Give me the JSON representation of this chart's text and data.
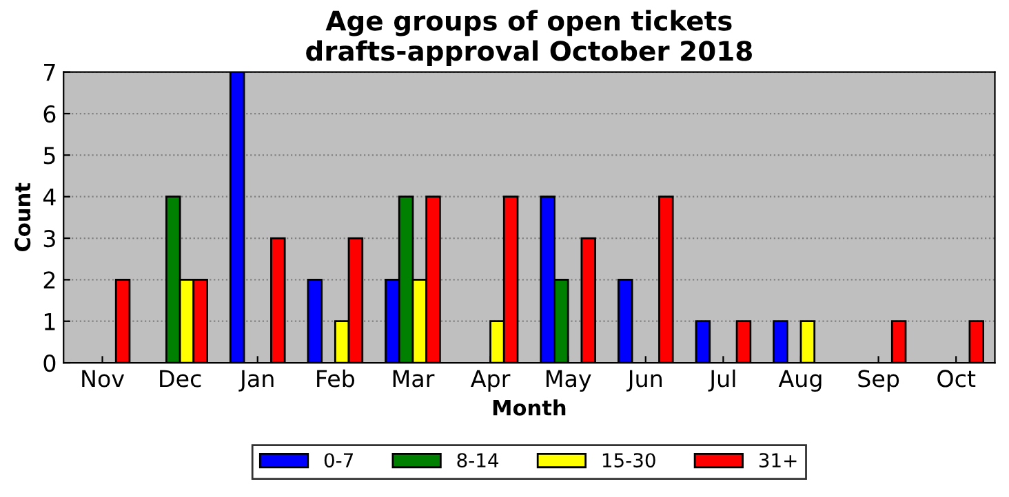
{
  "chart_data": {
    "type": "bar",
    "title": "Age groups of open tickets\ndrafts-approval October 2018",
    "xlabel": "Month",
    "ylabel": "Count",
    "categories": [
      "Nov",
      "Dec",
      "Jan",
      "Feb",
      "Mar",
      "Apr",
      "May",
      "Jun",
      "Jul",
      "Aug",
      "Sep",
      "Oct"
    ],
    "series": [
      {
        "name": "0-7",
        "color": "#0000ff",
        "values": [
          0,
          0,
          7,
          2,
          2,
          0,
          4,
          2,
          1,
          1,
          0,
          0
        ]
      },
      {
        "name": "8-14",
        "color": "#008000",
        "values": [
          0,
          4,
          0,
          0,
          4,
          0,
          2,
          0,
          0,
          0,
          0,
          0
        ]
      },
      {
        "name": "15-30",
        "color": "#ffff00",
        "values": [
          0,
          2,
          0,
          1,
          2,
          1,
          0,
          0,
          0,
          1,
          0,
          0
        ]
      },
      {
        "name": "31+",
        "color": "#ff0000",
        "values": [
          2,
          2,
          3,
          3,
          4,
          4,
          3,
          4,
          1,
          0,
          1,
          1
        ]
      }
    ],
    "ylim": [
      0,
      7
    ],
    "yticks": [
      0,
      1,
      2,
      3,
      4,
      5,
      6,
      7
    ],
    "grid": "y",
    "legend": "bottom"
  }
}
